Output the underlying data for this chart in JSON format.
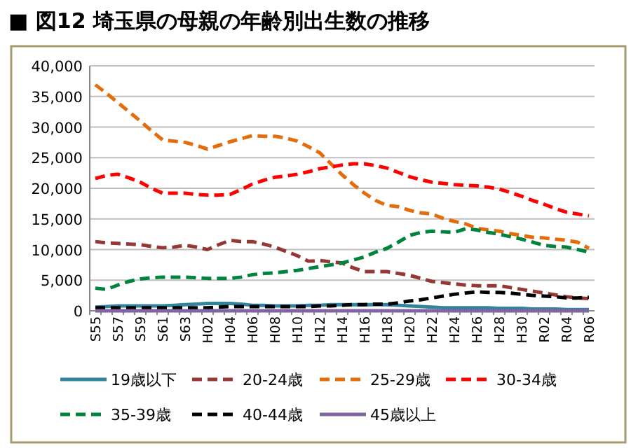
{
  "chart_data": {
    "type": "line",
    "title": "■ 図12 埼玉県の母親の年齢別出生数の推移",
    "categories": [
      "S55",
      null,
      "S57",
      null,
      "S59",
      null,
      "S61",
      null,
      "S63",
      null,
      "H02",
      null,
      "H04",
      null,
      "H06",
      null,
      "H08",
      null,
      "H10",
      null,
      "H12",
      null,
      "H14",
      null,
      "H16",
      null,
      "H18",
      null,
      "H20",
      null,
      "H22",
      null,
      "H24",
      null,
      "H26",
      null,
      "H28",
      null,
      "H30",
      null,
      "R02",
      null,
      "R04",
      null,
      "R06"
    ],
    "series": [
      {
        "name": "19歳以下",
        "color": "#31849b",
        "line_style": "solid",
        "values": [
          600,
          700,
          800,
          800,
          800,
          800,
          800,
          900,
          1000,
          1100,
          1200,
          1200,
          1200,
          1100,
          900,
          900,
          800,
          800,
          800,
          900,
          900,
          1000,
          1000,
          1000,
          1000,
          1000,
          1000,
          900,
          800,
          700,
          600,
          500,
          500,
          500,
          500,
          500,
          400,
          400,
          400,
          300,
          300,
          300,
          200,
          200,
          200
        ]
      },
      {
        "name": "20-24歳",
        "color": "#953735",
        "line_style": "dashed",
        "values": [
          11300,
          11100,
          11000,
          10900,
          10800,
          10500,
          10300,
          10400,
          10700,
          10400,
          10000,
          10800,
          11500,
          11300,
          11300,
          10900,
          10400,
          9700,
          9000,
          8100,
          8200,
          8000,
          7800,
          7000,
          6400,
          6400,
          6400,
          6100,
          5800,
          5300,
          4800,
          4600,
          4400,
          4200,
          4100,
          4100,
          4100,
          3800,
          3500,
          3200,
          2900,
          2600,
          2300,
          2100,
          2000
        ]
      },
      {
        "name": "25-29歳",
        "color": "#e46c0a",
        "line_style": "dashed",
        "values": [
          36900,
          35500,
          34000,
          32500,
          31000,
          29400,
          27900,
          27700,
          27500,
          27000,
          26400,
          27000,
          27600,
          28100,
          28600,
          28500,
          28500,
          28200,
          27700,
          26800,
          25800,
          24000,
          22200,
          20600,
          19200,
          18000,
          17200,
          17000,
          16400,
          16000,
          15800,
          15100,
          14600,
          14200,
          13500,
          13200,
          13000,
          12600,
          12300,
          12000,
          11900,
          11700,
          11500,
          11200,
          10200
        ]
      },
      {
        "name": "30-34歳",
        "color": "#ff0000",
        "line_style": "dashed",
        "values": [
          21600,
          22100,
          22300,
          21700,
          21000,
          20000,
          19200,
          19200,
          19200,
          19000,
          18900,
          18900,
          19000,
          19800,
          20700,
          21300,
          21800,
          22000,
          22300,
          22700,
          23200,
          23500,
          23800,
          24000,
          24000,
          23700,
          23300,
          22600,
          21900,
          21400,
          21000,
          20800,
          20600,
          20500,
          20400,
          20200,
          19900,
          19300,
          18700,
          18000,
          17400,
          16700,
          16100,
          15800,
          15500
        ]
      },
      {
        "name": "35-39歳",
        "color": "#00843d",
        "line_style": "dashed",
        "values": [
          3700,
          3500,
          4200,
          4800,
          5200,
          5400,
          5500,
          5500,
          5500,
          5400,
          5300,
          5300,
          5300,
          5500,
          5900,
          6100,
          6200,
          6400,
          6600,
          6900,
          7200,
          7500,
          7800,
          8300,
          8800,
          9600,
          10200,
          11200,
          12300,
          12800,
          13000,
          12900,
          12800,
          13400,
          13200,
          12800,
          12500,
          12100,
          11700,
          11200,
          10700,
          10500,
          10400,
          10000,
          9600
        ]
      },
      {
        "name": "40-44歳",
        "color": "#000000",
        "line_style": "dashed",
        "values": [
          500,
          500,
          500,
          500,
          500,
          500,
          500,
          500,
          500,
          500,
          500,
          600,
          700,
          700,
          700,
          700,
          700,
          700,
          700,
          700,
          800,
          800,
          900,
          1000,
          1000,
          1100,
          1100,
          1300,
          1600,
          1800,
          2100,
          2400,
          2700,
          2900,
          3100,
          3000,
          3000,
          2900,
          2700,
          2500,
          2400,
          2300,
          2100,
          2100,
          2200
        ]
      },
      {
        "name": "45歳以上",
        "color": "#8064a2",
        "line_style": "solid",
        "values": [
          0,
          0,
          0,
          0,
          0,
          0,
          0,
          0,
          0,
          0,
          0,
          0,
          0,
          0,
          0,
          0,
          0,
          0,
          0,
          0,
          0,
          0,
          0,
          0,
          0,
          0,
          0,
          0,
          0,
          0,
          0,
          0,
          0,
          0,
          0,
          0,
          0,
          0,
          0,
          0,
          0,
          0,
          0,
          0,
          0
        ]
      }
    ],
    "ylim": [
      0,
      40000
    ],
    "yticks": [
      {
        "value": 0,
        "label": "0"
      },
      {
        "value": 5000,
        "label": "5,000"
      },
      {
        "value": 10000,
        "label": "10,000"
      },
      {
        "value": 15000,
        "label": "15,000"
      },
      {
        "value": 20000,
        "label": "20,000"
      },
      {
        "value": 25000,
        "label": "25,000"
      },
      {
        "value": 30000,
        "label": "30,000"
      },
      {
        "value": 35000,
        "label": "35,000"
      },
      {
        "value": 40000,
        "label": "40,000"
      }
    ],
    "grid": "y",
    "legend": "bottom"
  }
}
